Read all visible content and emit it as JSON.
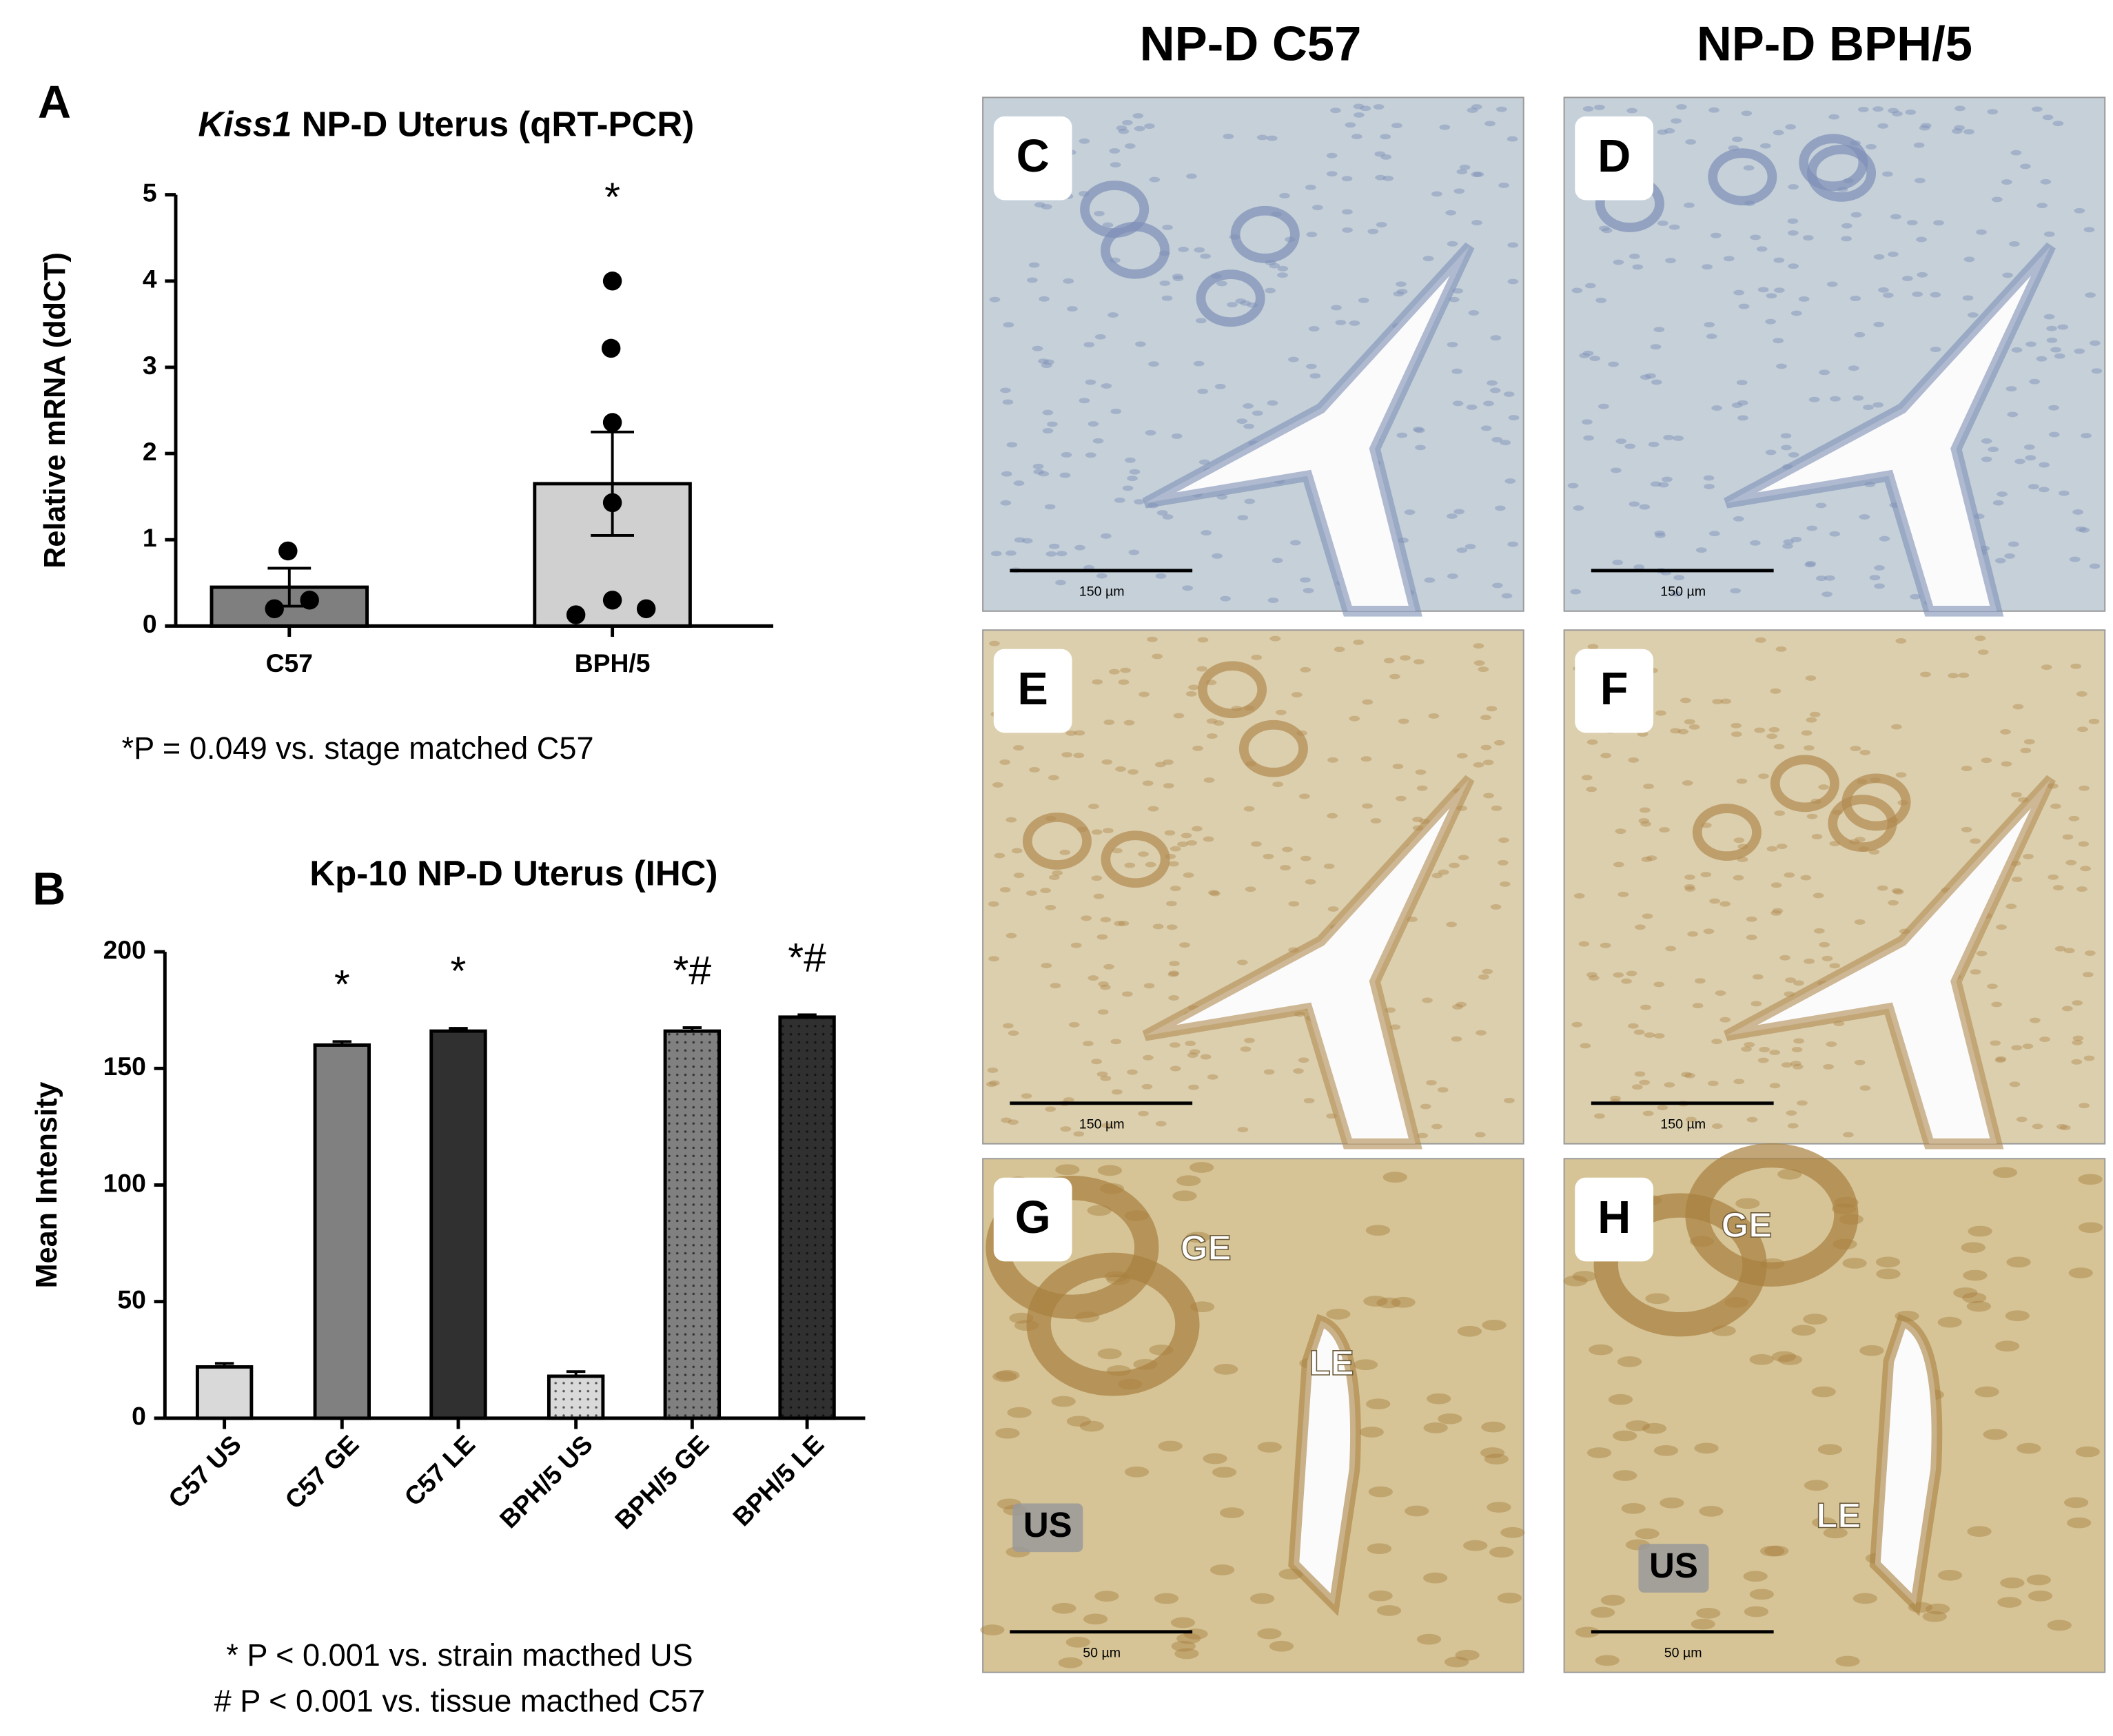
{
  "chart_data": [
    {
      "type": "bar",
      "panel_label": "A",
      "title": {
        "italic": "Kiss1",
        "text": "NP-D Uterus (qRT-PCR)"
      },
      "ylabel": "Relative mRNA (ddCT)",
      "categories": [
        "C57",
        "BPH/5"
      ],
      "values": [
        0.45,
        1.65
      ],
      "errors": [
        0.22,
        0.6
      ],
      "error_bars": "both",
      "points": [
        [
          0.2,
          0.87,
          0.3
        ],
        [
          4.0,
          3.22,
          2.36,
          1.43,
          0.3,
          0.13,
          0.2
        ]
      ],
      "colors": [
        "#7f7f7f",
        "#d0d0d0"
      ],
      "dotted": [
        false,
        false
      ],
      "annotations": [
        null,
        "*"
      ],
      "ylim": [
        0,
        5
      ],
      "yticks": [
        0,
        1,
        2,
        3,
        4,
        5
      ],
      "notes": [
        "*P = 0.049 vs. stage matched C57"
      ]
    },
    {
      "type": "bar",
      "panel_label": "B",
      "title": {
        "text": "Kp-10 NP-D Uterus (IHC)"
      },
      "ylabel": "Mean Intensity",
      "categories": [
        "C57 US",
        "C57 GE",
        "C57 LE",
        "BPH/5 US",
        "BPH/5 GE",
        "BPH/5 LE"
      ],
      "values": [
        22,
        160,
        166,
        18,
        166,
        172
      ],
      "errors": [
        1.5,
        1.5,
        1.2,
        2,
        1.5,
        1
      ],
      "error_bars": "up",
      "colors": [
        "#d9d9d9",
        "#808080",
        "#303030",
        "#d9d9d9",
        "#808080",
        "#303030"
      ],
      "dotted": [
        false,
        false,
        false,
        true,
        true,
        true
      ],
      "annotations": [
        null,
        "*",
        "*",
        null,
        "*#",
        "*#"
      ],
      "ylim": [
        0,
        200
      ],
      "yticks": [
        0,
        50,
        100,
        150,
        200
      ],
      "notes": [
        "* P < 0.001 vs. strain macthed US",
        "# P < 0.001 vs. tissue macthed C57"
      ]
    }
  ],
  "figure": {
    "headers": [
      "NP-D C57",
      "NP-D BPH/5"
    ],
    "panels": [
      {
        "label": "C",
        "scale_bar": "150 µm"
      },
      {
        "label": "D",
        "scale_bar": "150 µm"
      },
      {
        "label": "E",
        "scale_bar": "150 µm"
      },
      {
        "label": "F",
        "scale_bar": "150 µm"
      },
      {
        "label": "G",
        "scale_bar": "50 µm",
        "regions": [
          "GE",
          "LE",
          "US"
        ]
      },
      {
        "label": "H",
        "scale_bar": "50 µm",
        "regions": [
          "GE",
          "LE",
          "US"
        ]
      }
    ]
  }
}
